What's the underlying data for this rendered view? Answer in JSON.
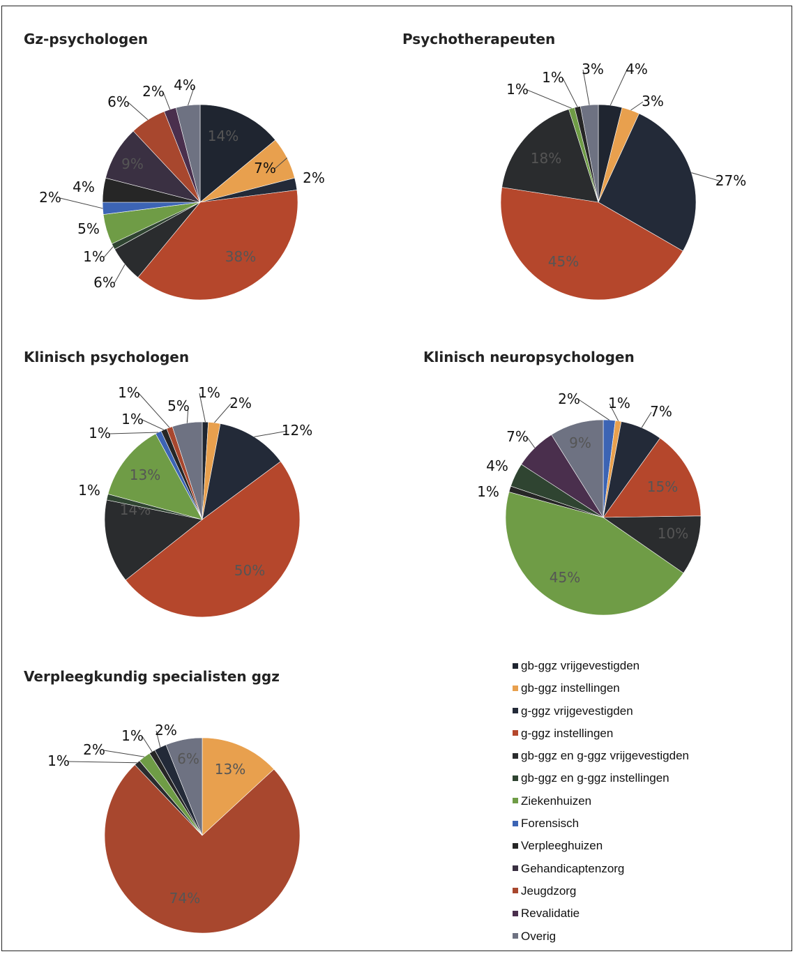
{
  "legend": [
    {
      "key": "gbv",
      "label": "gb-ggz vrijgevestigden",
      "color": "#1f2530"
    },
    {
      "key": "gbi",
      "label": "gb-ggz instellingen",
      "color": "#e8a04e"
    },
    {
      "key": "gv",
      "label": "g-ggz vrijgevestigden",
      "color": "#232a38"
    },
    {
      "key": "gi",
      "label": "g-ggz instellingen",
      "color": "#b5472c"
    },
    {
      "key": "ggv",
      "label": "gb-ggz en g-ggz vrijgevestigden",
      "color": "#2a2c2e"
    },
    {
      "key": "ggi",
      "label": "gb-ggz en g-ggz instellingen",
      "color": "#2f4431"
    },
    {
      "key": "zie",
      "label": "Ziekenhuizen",
      "color": "#6f9c46"
    },
    {
      "key": "for",
      "label": "Forensisch",
      "color": "#3c64b4"
    },
    {
      "key": "ver",
      "label": "Verpleeghuizen",
      "color": "#262626"
    },
    {
      "key": "geh",
      "label": "Gehandicaptenzorg",
      "color": "#3a3042"
    },
    {
      "key": "jeu",
      "label": "Jeugdzorg",
      "color": "#a8472e"
    },
    {
      "key": "rev",
      "label": "Revalidatie",
      "color": "#4a2f4d"
    },
    {
      "key": "ove",
      "label": "Overig",
      "color": "#6e7282"
    }
  ],
  "chart_data": [
    {
      "type": "pie",
      "title": "Gz-psychologen",
      "slices": [
        {
          "series": "gbv",
          "value": 14,
          "label": "14%"
        },
        {
          "series": "gbi",
          "value": 7,
          "label": "7%"
        },
        {
          "series": "gv",
          "value": 2,
          "label": "2%"
        },
        {
          "series": "gi",
          "value": 38,
          "label": "38%"
        },
        {
          "series": "ggv",
          "value": 6,
          "label": "6%"
        },
        {
          "series": "ggi",
          "value": 1,
          "label": "1%"
        },
        {
          "series": "zie",
          "value": 5,
          "label": "5%"
        },
        {
          "series": "for",
          "value": 2,
          "label": "2%"
        },
        {
          "series": "ver",
          "value": 4,
          "label": "4%"
        },
        {
          "series": "geh",
          "value": 9,
          "label": "9%"
        },
        {
          "series": "jeu",
          "value": 6,
          "label": "6%"
        },
        {
          "series": "rev",
          "value": 2,
          "label": "2%"
        },
        {
          "series": "ove",
          "value": 4,
          "label": "4%"
        }
      ]
    },
    {
      "type": "pie",
      "title": "Psychotherapeuten",
      "slices": [
        {
          "series": "gbv",
          "value": 4,
          "label": "4%"
        },
        {
          "series": "gbi",
          "value": 3,
          "label": "3%"
        },
        {
          "series": "gv",
          "value": 27,
          "label": "27%"
        },
        {
          "series": "gi",
          "value": 45,
          "label": "45%"
        },
        {
          "series": "ggv",
          "value": 18,
          "label": "18%"
        },
        {
          "series": "zie",
          "value": 1,
          "label": "1%"
        },
        {
          "series": "ver",
          "value": 1,
          "label": "1%"
        },
        {
          "series": "ove",
          "value": 3,
          "label": "3%"
        }
      ]
    },
    {
      "type": "pie",
      "title": "Klinisch psychologen",
      "slices": [
        {
          "series": "gbv",
          "value": 1,
          "label": "1%"
        },
        {
          "series": "gbi",
          "value": 2,
          "label": "2%"
        },
        {
          "series": "gv",
          "value": 12,
          "label": "12%"
        },
        {
          "series": "gi",
          "value": 50,
          "label": "50%"
        },
        {
          "series": "ggv",
          "value": 14,
          "label": "14%"
        },
        {
          "series": "ggi",
          "value": 1,
          "label": "1%"
        },
        {
          "series": "zie",
          "value": 13,
          "label": "13%"
        },
        {
          "series": "for",
          "value": 1,
          "label": "1%"
        },
        {
          "series": "ver",
          "value": 1,
          "label": "1%"
        },
        {
          "series": "jeu",
          "value": 1,
          "label": "1%"
        },
        {
          "series": "ove",
          "value": 5,
          "label": "5%"
        }
      ]
    },
    {
      "type": "pie",
      "title": "Klinisch neuropsychologen",
      "slices": [
        {
          "series": "for",
          "value": 2,
          "label": "2%"
        },
        {
          "series": "gbi",
          "value": 1,
          "label": "1%"
        },
        {
          "series": "gv",
          "value": 7,
          "label": "7%"
        },
        {
          "series": "gi",
          "value": 15,
          "label": "15%"
        },
        {
          "series": "ggv",
          "value": 10,
          "label": "10%"
        },
        {
          "series": "zie",
          "value": 45,
          "label": "45%"
        },
        {
          "series": "ver",
          "value": 1,
          "label": "1%"
        },
        {
          "series": "ggi",
          "value": 4,
          "label": "4%"
        },
        {
          "series": "rev",
          "value": 7,
          "label": "7%"
        },
        {
          "series": "ove",
          "value": 9,
          "label": "9%"
        }
      ]
    },
    {
      "type": "pie",
      "title": "Verpleegkundig specialisten ggz",
      "slices": [
        {
          "series": "gbi",
          "value": 13,
          "label": "13%"
        },
        {
          "series": "jeu",
          "value": 74,
          "label": "74%"
        },
        {
          "series": "ggv",
          "value": 1,
          "label": "1%"
        },
        {
          "series": "zie",
          "value": 2,
          "label": "2%"
        },
        {
          "series": "ver",
          "value": 1,
          "label": "1%"
        },
        {
          "series": "gv",
          "value": 2,
          "label": "2%"
        },
        {
          "series": "ove",
          "value": 6,
          "label": "6%"
        }
      ]
    }
  ]
}
